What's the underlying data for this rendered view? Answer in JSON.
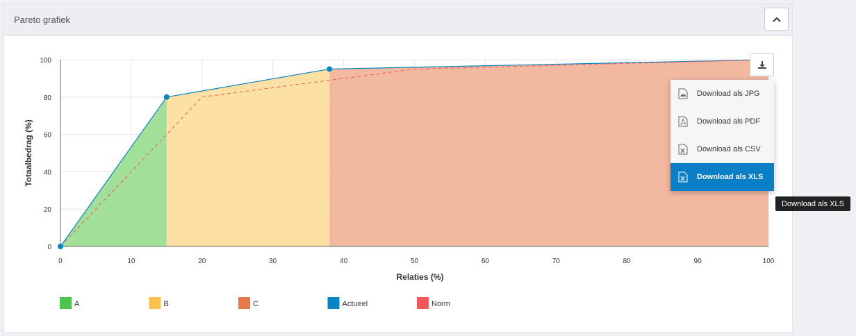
{
  "panel": {
    "title": "Pareto grafiek",
    "collapse_icon": "chevron-up-icon"
  },
  "download": {
    "button_icon": "download-icon",
    "menu": [
      {
        "label": "Download als JPG",
        "icon": "image-file-icon"
      },
      {
        "label": "Download als PDF",
        "icon": "pdf-file-icon"
      },
      {
        "label": "Download als CSV",
        "icon": "csv-file-icon"
      },
      {
        "label": "Download als XLS",
        "icon": "xls-file-icon",
        "active": true
      }
    ],
    "tooltip": "Download als XLS"
  },
  "chart_data": {
    "type": "area",
    "xlabel": "Relaties (%)",
    "ylabel": "Totaalbedrag (%)",
    "xlim": [
      0,
      100
    ],
    "ylim": [
      0,
      100
    ],
    "xticks": [
      0,
      10,
      20,
      30,
      40,
      50,
      60,
      70,
      80,
      90,
      100
    ],
    "yticks": [
      0,
      20,
      40,
      60,
      80,
      100
    ],
    "grid": true,
    "legend_position": "bottom-left",
    "bands": [
      {
        "name": "A",
        "x": [
          0,
          15
        ],
        "color": "#4cc24f",
        "fill": "#a2e09a"
      },
      {
        "name": "B",
        "x": [
          15,
          38
        ],
        "color": "#fbc04e",
        "fill": "#fde0a4"
      },
      {
        "name": "C",
        "x": [
          38,
          100
        ],
        "color": "#e8784a",
        "fill": "#f3b8a0"
      }
    ],
    "series": [
      {
        "name": "Actueel",
        "color": "#0a84c2",
        "style": "solid",
        "x": [
          0,
          15,
          38,
          100
        ],
        "y": [
          0,
          80,
          95,
          100
        ],
        "markers": [
          0,
          1,
          2
        ]
      },
      {
        "name": "Norm",
        "color": "#f05a5a",
        "style": "dashed",
        "x": [
          0,
          15,
          20,
          50,
          100
        ],
        "y": [
          0,
          60,
          80,
          95,
          100
        ]
      }
    ]
  }
}
